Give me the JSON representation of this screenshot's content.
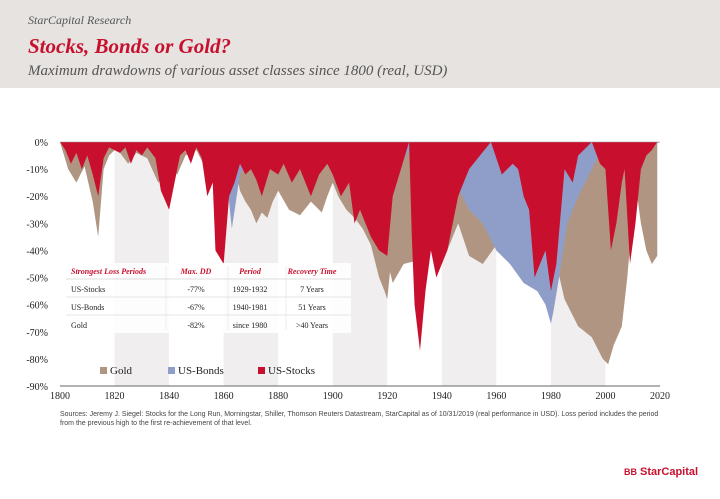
{
  "header": {
    "brand_line": "StarCapital Research",
    "title": "Stocks, Bonds or Gold?",
    "subtitle": "Maximum drawdowns of various asset classes since 1800 (real, USD)"
  },
  "chart_data": {
    "type": "area",
    "title": "",
    "xlabel": "",
    "ylabel": "",
    "xlim": [
      1800,
      2020
    ],
    "ylim": [
      -90,
      0
    ],
    "x_ticks": [
      1800,
      1820,
      1840,
      1860,
      1880,
      1900,
      1920,
      1940,
      1960,
      1980,
      2000,
      2020
    ],
    "x_tick_labels": [
      "1800",
      "1820",
      "1840",
      "1860",
      "1880",
      "1900",
      "1920",
      "1940",
      "1960",
      "1980",
      "2000",
      "2020"
    ],
    "y_ticks": [
      0,
      -10,
      -20,
      -30,
      -40,
      -50,
      -60,
      -70,
      -80,
      -90
    ],
    "y_tick_labels": [
      "0%",
      "-10%",
      "-20%",
      "-30%",
      "-40%",
      "-50%",
      "-60%",
      "-70%",
      "-80%",
      "-90%"
    ],
    "grid": "alternating vertical bands",
    "legend_position": "bottom-left",
    "colors": {
      "gold": "#b09682",
      "bonds": "#8f9ec9",
      "stocks": "#c8102e"
    },
    "series": [
      {
        "name": "Gold",
        "x": [
          1800,
          1803,
          1806,
          1809,
          1812,
          1814,
          1816,
          1818,
          1820,
          1822,
          1825,
          1828,
          1832,
          1836,
          1840,
          1843,
          1846,
          1850,
          1853,
          1856,
          1859,
          1862,
          1864,
          1866,
          1868,
          1870,
          1872,
          1874,
          1876,
          1878,
          1880,
          1884,
          1888,
          1892,
          1896,
          1898,
          1900,
          1902,
          1905,
          1908,
          1911,
          1914,
          1917,
          1919,
          1920,
          1921,
          1922,
          1926,
          1930,
          1932,
          1934,
          1936,
          1940,
          1942,
          1944,
          1946,
          1950,
          1955,
          1960,
          1965,
          1968,
          1971,
          1972,
          1974,
          1975,
          1977,
          1978,
          1980,
          1982,
          1985,
          1990,
          1995,
          1999,
          2001,
          2003,
          2006,
          2008,
          2011,
          2013,
          2015,
          2017,
          2019
        ],
        "values": [
          0,
          -10,
          -15,
          -9,
          -22,
          -35,
          -10,
          -5,
          -3,
          -4,
          -8,
          -4,
          -6,
          -15,
          -9,
          -12,
          -5,
          -3,
          -9,
          -14,
          -8,
          -4,
          -8,
          -18,
          -22,
          -25,
          -30,
          -26,
          -28,
          -22,
          -18,
          -25,
          -27,
          -22,
          -26,
          -20,
          -15,
          -20,
          -25,
          -28,
          -32,
          -38,
          -50,
          -55,
          -58,
          -48,
          -52,
          -45,
          -44,
          -48,
          -35,
          -38,
          -45,
          -40,
          -35,
          -30,
          -42,
          -45,
          -38,
          -35,
          -40,
          -25,
          -14,
          -10,
          -18,
          -20,
          -12,
          0,
          -45,
          -58,
          -68,
          -72,
          -80,
          -82,
          -75,
          -68,
          -50,
          -15,
          -30,
          -40,
          -45,
          -42
        ]
      },
      {
        "name": "US-Bonds",
        "x": [
          1800,
          1805,
          1810,
          1815,
          1820,
          1830,
          1840,
          1850,
          1858,
          1861,
          1863,
          1866,
          1870,
          1880,
          1890,
          1900,
          1910,
          1916,
          1918,
          1920,
          1922,
          1925,
          1930,
          1935,
          1940,
          1945,
          1950,
          1955,
          1960,
          1965,
          1970,
          1975,
          1978,
          1980,
          1981,
          1983,
          1986,
          1990,
          2000,
          2010,
          2020
        ],
        "values": [
          0,
          -2,
          -3,
          -2,
          0,
          -1,
          -2,
          -1,
          0,
          -12,
          -32,
          -12,
          -5,
          0,
          -2,
          0,
          -5,
          -15,
          -35,
          -25,
          -15,
          -8,
          0,
          -2,
          0,
          -15,
          -25,
          -30,
          -40,
          -45,
          -52,
          -55,
          -60,
          -67,
          -62,
          -50,
          -30,
          -20,
          0,
          -5,
          0
        ]
      },
      {
        "name": "US-Stocks",
        "x": [
          1800,
          1802,
          1804,
          1806,
          1808,
          1810,
          1812,
          1814,
          1816,
          1818,
          1820,
          1822,
          1824,
          1826,
          1828,
          1830,
          1832,
          1835,
          1837,
          1840,
          1842,
          1844,
          1846,
          1848,
          1850,
          1852,
          1854,
          1856,
          1857,
          1860,
          1862,
          1864,
          1866,
          1868,
          1870,
          1872,
          1874,
          1877,
          1880,
          1882,
          1885,
          1888,
          1892,
          1895,
          1898,
          1900,
          1903,
          1906,
          1908,
          1910,
          1914,
          1917,
          1920,
          1922,
          1925,
          1928,
          1929,
          1930,
          1932,
          1934,
          1936,
          1938,
          1940,
          1942,
          1944,
          1946,
          1948,
          1950,
          1954,
          1958,
          1962,
          1966,
          1968,
          1970,
          1972,
          1974,
          1976,
          1978,
          1980,
          1982,
          1985,
          1988,
          1990,
          1992,
          1995,
          1998,
          2000,
          2002,
          2004,
          2006,
          2007,
          2009,
          2011,
          2013,
          2015,
          2017,
          2019
        ],
        "values": [
          0,
          -3,
          -8,
          -4,
          -10,
          -5,
          -12,
          -20,
          -6,
          -2,
          -3,
          -4,
          -2,
          -8,
          -3,
          -5,
          -2,
          -6,
          -18,
          -25,
          -15,
          -5,
          -3,
          -8,
          -2,
          -6,
          -20,
          -15,
          -40,
          -45,
          -20,
          -15,
          -8,
          -12,
          -10,
          -14,
          -20,
          -10,
          -12,
          -8,
          -15,
          -10,
          -20,
          -12,
          -8,
          -12,
          -20,
          -15,
          -30,
          -25,
          -35,
          -40,
          -42,
          -20,
          -10,
          0,
          -35,
          -60,
          -77,
          -55,
          -40,
          -50,
          -45,
          -40,
          -30,
          -20,
          -15,
          -10,
          -5,
          0,
          -12,
          -8,
          -10,
          -20,
          -25,
          -50,
          -45,
          -40,
          -55,
          -45,
          -10,
          -15,
          -5,
          -3,
          0,
          -8,
          -10,
          -40,
          -30,
          -15,
          -10,
          -45,
          -30,
          -10,
          -5,
          -3,
          0
        ]
      }
    ],
    "legend": [
      "Gold",
      "US-Bonds",
      "US-Stocks"
    ],
    "table": {
      "headers": [
        "Strongest Loss Periods",
        "Max. DD",
        "Period",
        "Recovery Time"
      ],
      "rows": [
        [
          "US-Stocks",
          "-77%",
          "1929-1932",
          "7 Years"
        ],
        [
          "US-Bonds",
          "-67%",
          "1940-1981",
          "51 Years"
        ],
        [
          "Gold",
          "-82%",
          "since 1980",
          ">40 Years"
        ]
      ]
    }
  },
  "footer": {
    "sources_line1": "Sources: Jeremy J. Siegel: Stocks for the Long Run, Morningstar, Shiller, Thomson Reuters Datastream, StarCapital as of 10/31/2019 (real performance in USD). Loss period includes the period",
    "sources_line2": "from the previous high to the first re-achievement of that level.",
    "logo_mark": "BB",
    "logo_text": "StarCapital"
  }
}
